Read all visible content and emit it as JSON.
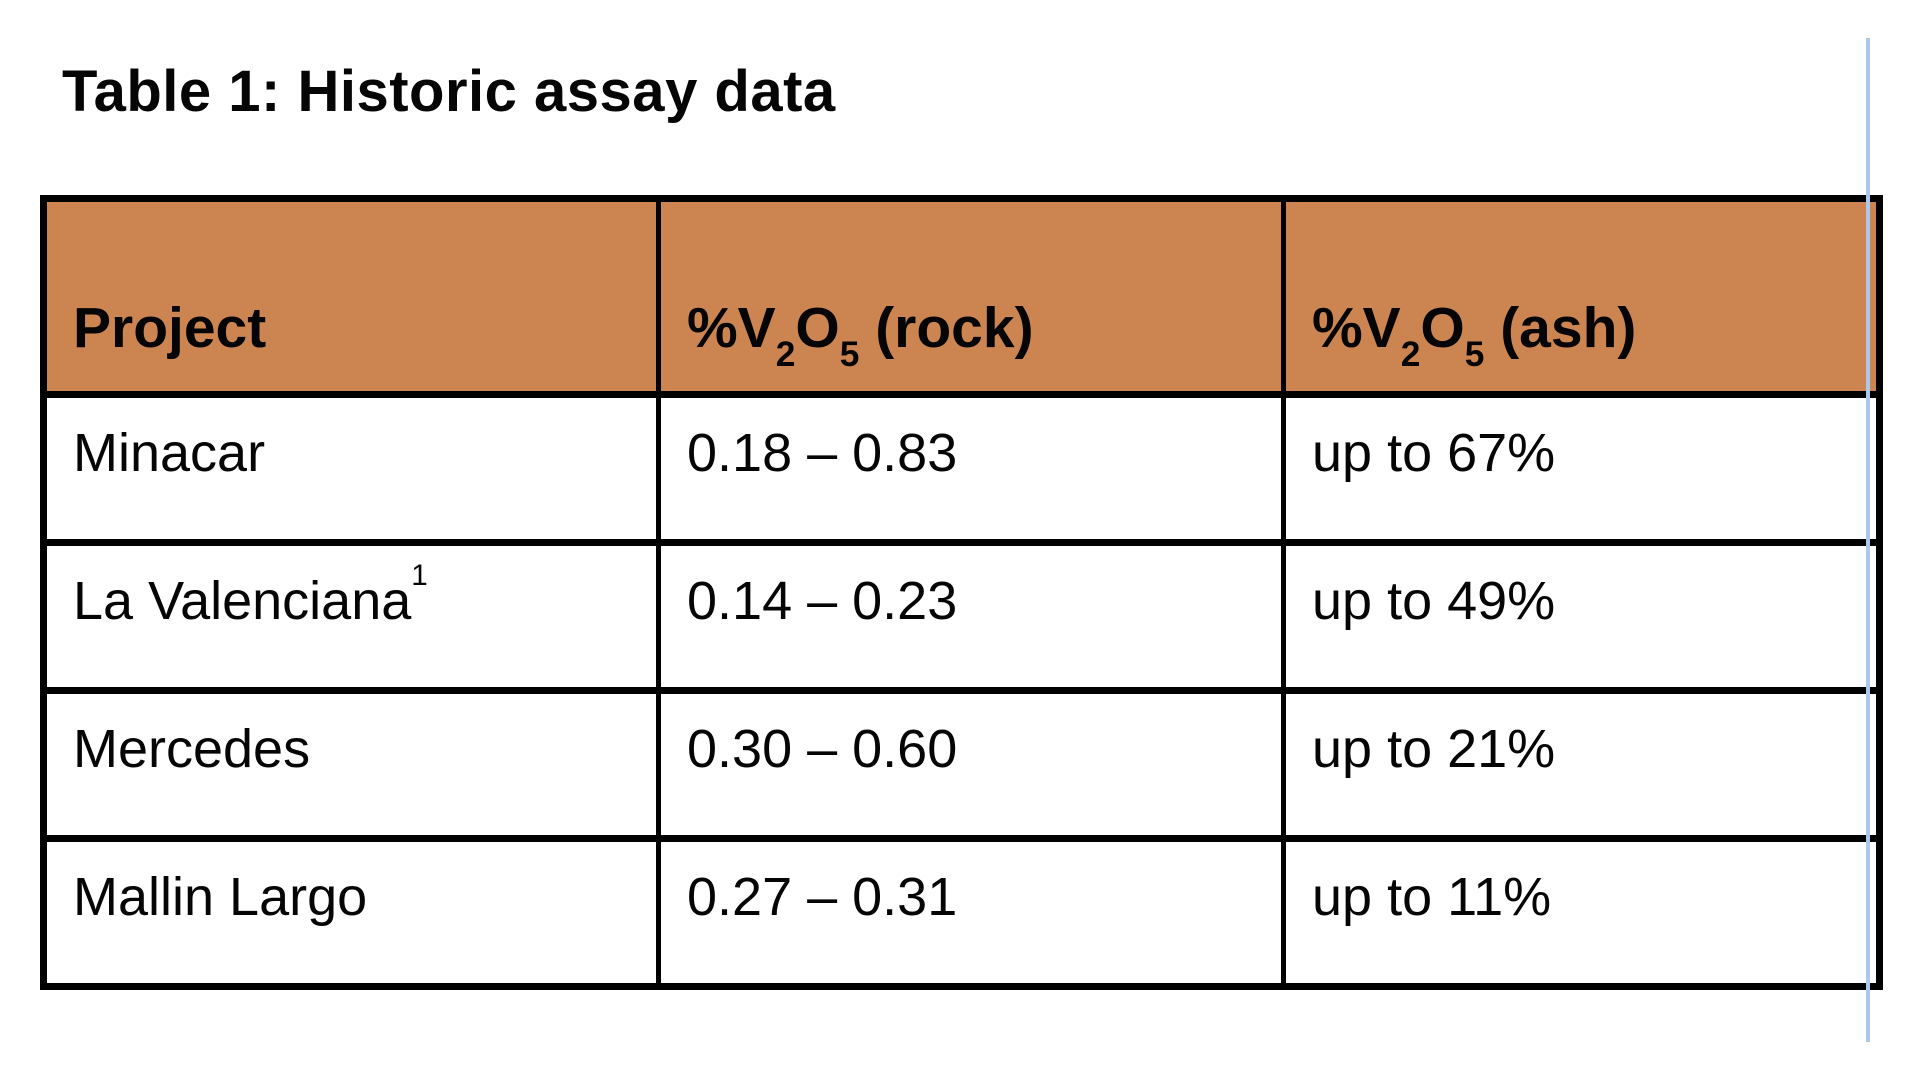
{
  "title": "Table 1: Historic assay data",
  "colors": {
    "header_bg": "#cc8450",
    "border": "#000000",
    "text": "#050505",
    "cursor_line": "#abc8ef",
    "background": "#ffffff"
  },
  "table": {
    "headers": [
      {
        "text": "Project"
      },
      {
        "pre": "%V",
        "sub1": "2",
        "mid": "O",
        "sub2": "5",
        "post": " (rock)"
      },
      {
        "pre": "%V",
        "sub1": "2",
        "mid": "O",
        "sub2": "5",
        "post": " (ash)"
      }
    ],
    "rows": [
      {
        "project": "Minacar",
        "project_sup": "",
        "rock_grade": "0.18 – 0.83",
        "ash_grade": "up to 67%"
      },
      {
        "project": "La Valenciana",
        "project_sup": "1",
        "rock_grade": "0.14 – 0.23",
        "ash_grade": "up to 49%"
      },
      {
        "project": "Mercedes",
        "project_sup": "",
        "rock_grade": "0.30 – 0.60",
        "ash_grade": "up to 21%"
      },
      {
        "project": "Mallin Largo",
        "project_sup": "",
        "rock_grade": "0.27 – 0.31",
        "ash_grade": "up to 11%"
      }
    ]
  }
}
